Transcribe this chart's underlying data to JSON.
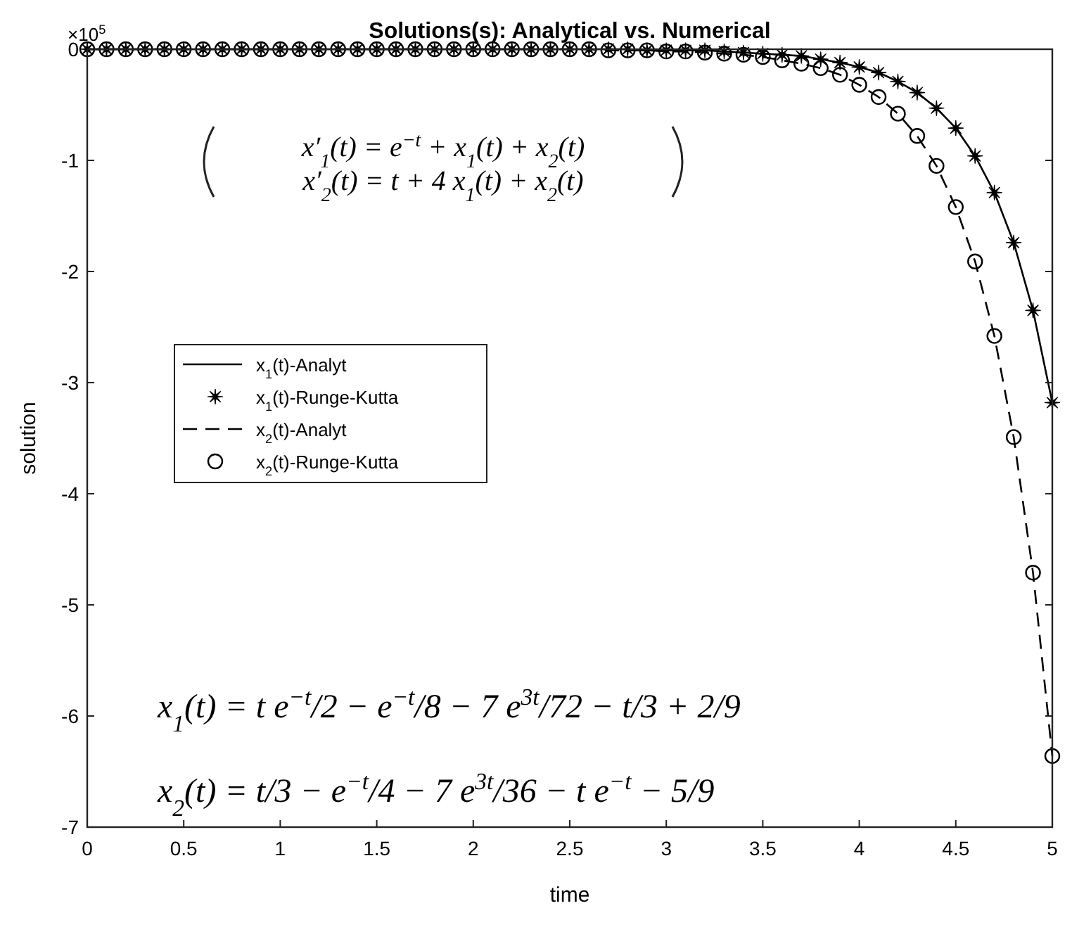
{
  "chart_data": {
    "type": "line",
    "title": "Solutions(s): Analytical vs. Numerical",
    "xlabel": "time",
    "ylabel": "solution",
    "x": [
      0,
      0.1,
      0.2,
      0.3,
      0.4,
      0.5,
      0.6,
      0.7,
      0.8,
      0.9,
      1,
      1.1,
      1.2,
      1.3,
      1.4,
      1.5,
      1.6,
      1.7,
      1.8,
      1.9,
      2,
      2.1,
      2.2,
      2.3,
      2.4,
      2.5,
      2.6,
      2.7,
      2.8,
      2.9,
      3,
      3.1,
      3.2,
      3.3,
      3.4,
      3.5,
      3.6,
      3.7,
      3.8,
      3.9,
      4,
      4.1,
      4.2,
      4.3,
      4.4,
      4.5,
      4.6,
      4.7,
      4.8,
      4.9,
      5
    ],
    "series": [
      {
        "name": "x$_{1}$(t)-Analyt",
        "color": "#000000",
        "line_style": "solid",
        "marker": "none",
        "values": [
          0,
          0,
          0,
          0,
          0,
          0,
          0,
          0,
          0,
          0,
          0,
          0,
          0,
          0,
          0,
          0,
          0,
          0,
          0,
          0,
          0,
          0,
          0,
          0,
          0,
          0,
          0,
          0,
          0,
          -0.01,
          -0.01,
          -0.01,
          -0.01,
          -0.02,
          -0.03,
          -0.04,
          -0.05,
          -0.06,
          -0.09,
          -0.12,
          -0.16,
          -0.21,
          -0.29,
          -0.39,
          -0.53,
          -0.71,
          -0.96,
          -1.29,
          -1.74,
          -2.35,
          -3.18
        ]
      },
      {
        "name": "x$_{1}$(t)-Runge-Kutta",
        "type": "scatter",
        "color": "#000000",
        "marker": "star",
        "values": [
          0,
          0,
          0,
          0,
          0,
          0,
          0,
          0,
          0,
          0,
          0,
          0,
          0,
          0,
          0,
          0,
          0,
          0,
          0,
          0,
          0,
          0,
          0,
          0,
          0,
          0,
          0,
          0,
          0,
          -0.01,
          -0.01,
          -0.01,
          -0.01,
          -0.02,
          -0.03,
          -0.04,
          -0.05,
          -0.06,
          -0.09,
          -0.12,
          -0.16,
          -0.21,
          -0.29,
          -0.39,
          -0.53,
          -0.71,
          -0.96,
          -1.29,
          -1.74,
          -2.35,
          -3.18
        ]
      },
      {
        "name": "x$_{2}$(t)-Analyt",
        "color": "#000000",
        "line_style": "dashed",
        "marker": "none",
        "values": [
          0,
          0,
          0,
          0,
          0,
          0,
          0,
          0,
          0,
          0,
          0,
          0,
          0,
          0,
          0,
          0,
          0,
          0,
          0,
          0,
          0,
          0,
          0,
          0,
          0,
          0,
          0,
          -0.01,
          -0.01,
          -0.01,
          -0.02,
          -0.02,
          -0.03,
          -0.04,
          -0.05,
          -0.07,
          -0.1,
          -0.13,
          -0.17,
          -0.23,
          -0.32,
          -0.43,
          -0.58,
          -0.78,
          -1.05,
          -1.42,
          -1.91,
          -2.58,
          -3.49,
          -4.71,
          -6.36
        ]
      },
      {
        "name": "x$_{2}$(t)-Runge-Kutta",
        "type": "scatter",
        "color": "#000000",
        "marker": "circle",
        "values": [
          0,
          0,
          0,
          0,
          0,
          0,
          0,
          0,
          0,
          0,
          0,
          0,
          0,
          0,
          0,
          0,
          0,
          0,
          0,
          0,
          0,
          0,
          0,
          0,
          0,
          0,
          0,
          -0.01,
          -0.01,
          -0.01,
          -0.02,
          -0.02,
          -0.03,
          -0.04,
          -0.05,
          -0.07,
          -0.1,
          -0.13,
          -0.17,
          -0.23,
          -0.32,
          -0.43,
          -0.58,
          -0.78,
          -1.05,
          -1.42,
          -1.91,
          -2.58,
          -3.49,
          -4.71,
          -6.36
        ]
      }
    ],
    "xlim": [
      0,
      5
    ],
    "xticks": [
      0,
      0.5,
      1,
      1.5,
      2,
      2.5,
      3,
      3.5,
      4,
      4.5,
      5
    ],
    "ylim": [
      -7,
      0
    ],
    "yticks": [
      -7,
      -6,
      -5,
      -4,
      -3,
      -2,
      -1,
      0
    ],
    "grid": false,
    "legend": "left",
    "annotations": [
      "×10$^{5}$",
      "x′$_{1}$(t) = e$^{−t}$ + x$_{1}$(t) + x$_{2}$(t)",
      "x′$_{2}$(t) = t + 4 x$_{1}$(t) + x$_{2}$(t)",
      "x$_{1}$(t) = t e$^{−t}$/2 − e$^{−t}$/8 − 7 e$^{3t}$/72 − t/3 + 2/9",
      "x$_{2}$(t) = t/3 − e$^{−t}$/4 − 7 e$^{3t}$/36 − t e$^{−t}$ − 5/9"
    ]
  }
}
